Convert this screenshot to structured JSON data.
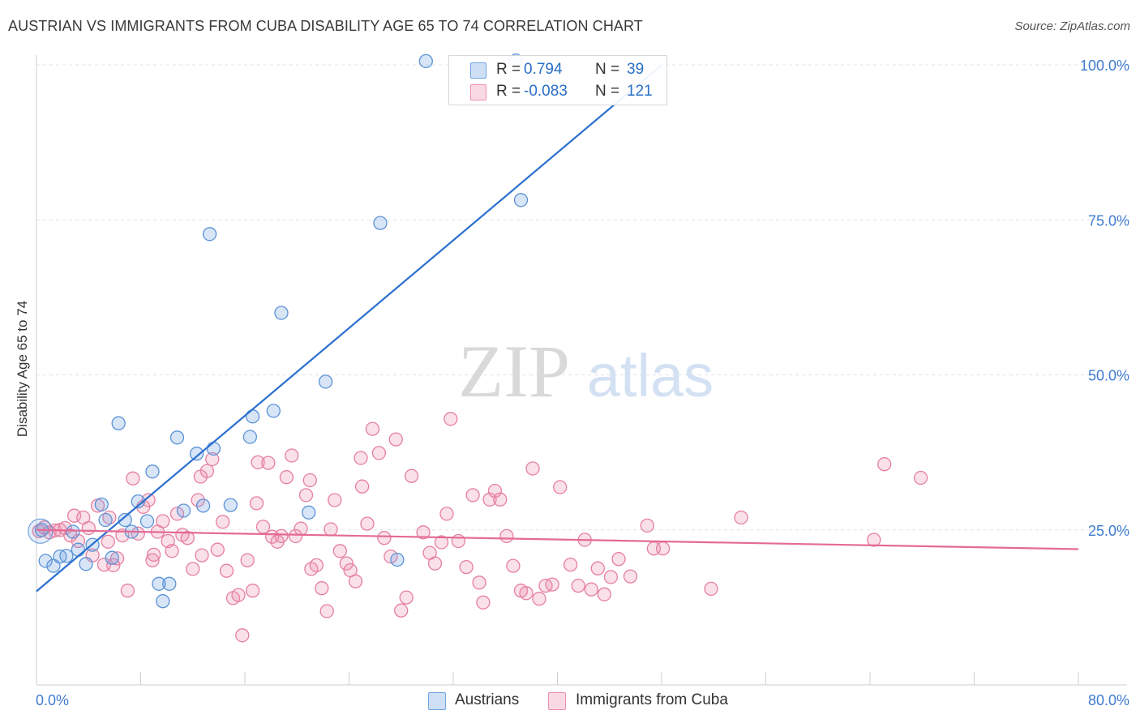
{
  "header": {
    "title": "AUSTRIAN VS IMMIGRANTS FROM CUBA DISABILITY AGE 65 TO 74 CORRELATION CHART",
    "source": "Source: ZipAtlas.com"
  },
  "watermark": {
    "zip": "ZIP",
    "atlas": "atlas"
  },
  "legend_top": {
    "rows": [
      {
        "r_label": "R =",
        "r_value": "0.794",
        "n_label": "N =",
        "n_value": "39",
        "color": "#6fa3e2"
      },
      {
        "r_label": "R =",
        "r_value": "-0.083",
        "n_label": "N =",
        "n_value": "121",
        "color": "#ee8fae"
      }
    ]
  },
  "legend_bottom": {
    "items": [
      {
        "label": "Austrians",
        "color": "#6fa3e2"
      },
      {
        "label": "Immigrants from Cuba",
        "color": "#ee8fae"
      }
    ]
  },
  "chart_data": {
    "type": "scatter",
    "xlabel": "",
    "ylabel": "Disability Age 65 to 74",
    "xlim": [
      0,
      80
    ],
    "ylim": [
      0,
      100
    ],
    "x_tick_labels": [
      {
        "value": 0,
        "label": "0.0%"
      },
      {
        "value": 80,
        "label": "80.0%"
      }
    ],
    "y_tick_labels": [
      {
        "value": 25,
        "label": "25.0%"
      },
      {
        "value": 50,
        "label": "50.0%"
      },
      {
        "value": 75,
        "label": "75.0%"
      },
      {
        "value": 100,
        "label": "100.0%"
      }
    ],
    "grid": true,
    "legend_position": "top-center",
    "series": [
      {
        "name": "Austrians",
        "color": "#6fa3e2",
        "stroke": "#5b93d6",
        "line_color": "#2a6fcf",
        "trend": {
          "x0": 0,
          "y0": 15.1,
          "x1": 48,
          "y1": 100
        },
        "points": [
          [
            0.4,
            25
          ],
          [
            0.7,
            20
          ],
          [
            1.3,
            19.2
          ],
          [
            1.8,
            20.7
          ],
          [
            2.3,
            20.8
          ],
          [
            2.8,
            24.7
          ],
          [
            3.2,
            21.8
          ],
          [
            3.8,
            19.5
          ],
          [
            4.3,
            22.6
          ],
          [
            5.0,
            29.1
          ],
          [
            5.3,
            26.6
          ],
          [
            5.8,
            20.5
          ],
          [
            6.3,
            42.2
          ],
          [
            6.8,
            26.6
          ],
          [
            7.3,
            24.7
          ],
          [
            7.8,
            29.6
          ],
          [
            8.5,
            26.4
          ],
          [
            8.9,
            34.4
          ],
          [
            9.4,
            16.3
          ],
          [
            9.7,
            13.5
          ],
          [
            10.2,
            16.3
          ],
          [
            10.8,
            39.9
          ],
          [
            11.3,
            28.1
          ],
          [
            12.3,
            37.3
          ],
          [
            12.8,
            28.9
          ],
          [
            13.3,
            72.7
          ],
          [
            13.6,
            38.1
          ],
          [
            14.9,
            29.0
          ],
          [
            16.4,
            40.0
          ],
          [
            16.6,
            43.3
          ],
          [
            18.2,
            44.2
          ],
          [
            18.8,
            60.0
          ],
          [
            20.9,
            27.8
          ],
          [
            22.2,
            48.9
          ],
          [
            26.4,
            74.5
          ],
          [
            27.7,
            20.2
          ],
          [
            29.9,
            100.6
          ],
          [
            36.8,
            100.7
          ],
          [
            37.2,
            78.2
          ]
        ]
      },
      {
        "name": "Immigrants from Cuba",
        "color": "#ee8fae",
        "stroke": "#e57fa2",
        "line_color": "#e46a95",
        "trend": {
          "x0": 0,
          "y0": 25.0,
          "x1": 80,
          "y1": 21.9
        },
        "points": [
          [
            0.2,
            24.8
          ],
          [
            0.6,
            25.4
          ],
          [
            1.0,
            24.6
          ],
          [
            1.4,
            24.9
          ],
          [
            1.8,
            25.0
          ],
          [
            2.2,
            25.3
          ],
          [
            2.6,
            24.1
          ],
          [
            2.9,
            27.3
          ],
          [
            3.2,
            23.2
          ],
          [
            3.6,
            27.0
          ],
          [
            4.0,
            25.3
          ],
          [
            4.3,
            20.9
          ],
          [
            4.7,
            28.9
          ],
          [
            5.2,
            19.4
          ],
          [
            5.5,
            23.1
          ],
          [
            5.9,
            19.3
          ],
          [
            6.2,
            20.4
          ],
          [
            6.6,
            24.1
          ],
          [
            7.0,
            15.2
          ],
          [
            7.4,
            33.3
          ],
          [
            7.8,
            24.4
          ],
          [
            8.2,
            28.7
          ],
          [
            8.6,
            29.8
          ],
          [
            8.9,
            20.1
          ],
          [
            9.3,
            24.7
          ],
          [
            9.7,
            26.4
          ],
          [
            10.1,
            23.2
          ],
          [
            10.4,
            21.6
          ],
          [
            10.8,
            27.6
          ],
          [
            11.2,
            24.2
          ],
          [
            11.6,
            23.7
          ],
          [
            12.0,
            18.7
          ],
          [
            12.4,
            29.8
          ],
          [
            12.7,
            20.9
          ],
          [
            13.1,
            34.5
          ],
          [
            13.5,
            36.4
          ],
          [
            13.9,
            21.8
          ],
          [
            14.3,
            26.3
          ],
          [
            14.6,
            18.4
          ],
          [
            15.1,
            14.0
          ],
          [
            15.5,
            14.5
          ],
          [
            15.8,
            8.0
          ],
          [
            16.2,
            20.1
          ],
          [
            16.6,
            15.2
          ],
          [
            17.0,
            35.9
          ],
          [
            17.4,
            25.5
          ],
          [
            17.8,
            35.8
          ],
          [
            18.1,
            23.9
          ],
          [
            18.5,
            23.1
          ],
          [
            18.8,
            24.0
          ],
          [
            19.2,
            33.5
          ],
          [
            19.6,
            37.0
          ],
          [
            19.9,
            24.0
          ],
          [
            20.3,
            25.2
          ],
          [
            20.7,
            30.6
          ],
          [
            21.1,
            18.7
          ],
          [
            21.5,
            19.3
          ],
          [
            21.9,
            15.6
          ],
          [
            22.3,
            11.9
          ],
          [
            22.6,
            25.1
          ],
          [
            22.9,
            29.8
          ],
          [
            23.3,
            21.6
          ],
          [
            23.8,
            19.6
          ],
          [
            24.1,
            18.5
          ],
          [
            24.5,
            16.7
          ],
          [
            24.9,
            36.6
          ],
          [
            25.4,
            26.0
          ],
          [
            25.8,
            41.3
          ],
          [
            26.3,
            37.4
          ],
          [
            26.7,
            23.7
          ],
          [
            27.2,
            20.7
          ],
          [
            27.6,
            39.6
          ],
          [
            28.0,
            12.0
          ],
          [
            28.4,
            14.1
          ],
          [
            28.8,
            33.7
          ],
          [
            29.7,
            24.6
          ],
          [
            30.2,
            21.3
          ],
          [
            30.6,
            19.6
          ],
          [
            31.1,
            23.0
          ],
          [
            31.5,
            27.6
          ],
          [
            31.8,
            42.9
          ],
          [
            32.4,
            23.2
          ],
          [
            33.0,
            19.0
          ],
          [
            33.5,
            30.6
          ],
          [
            34.0,
            16.5
          ],
          [
            34.3,
            13.3
          ],
          [
            34.8,
            29.9
          ],
          [
            35.2,
            31.3
          ],
          [
            35.6,
            29.9
          ],
          [
            36.1,
            24.0
          ],
          [
            36.6,
            19.2
          ],
          [
            37.2,
            15.2
          ],
          [
            37.6,
            14.8
          ],
          [
            38.1,
            34.9
          ],
          [
            38.6,
            13.9
          ],
          [
            39.1,
            16.0
          ],
          [
            39.6,
            16.2
          ],
          [
            40.2,
            31.9
          ],
          [
            41.0,
            19.4
          ],
          [
            41.6,
            16.0
          ],
          [
            42.1,
            23.4
          ],
          [
            42.6,
            15.4
          ],
          [
            43.1,
            18.8
          ],
          [
            43.6,
            14.6
          ],
          [
            44.1,
            17.4
          ],
          [
            44.7,
            20.3
          ],
          [
            45.6,
            17.5
          ],
          [
            46.9,
            25.7
          ],
          [
            47.4,
            22.0
          ],
          [
            48.1,
            22.0
          ],
          [
            51.8,
            15.5
          ],
          [
            54.1,
            27.0
          ],
          [
            64.3,
            23.4
          ],
          [
            65.1,
            35.6
          ],
          [
            67.9,
            33.4
          ],
          [
            5.6,
            27.0
          ],
          [
            9.0,
            21.0
          ],
          [
            12.6,
            33.6
          ],
          [
            16.9,
            29.3
          ],
          [
            21.0,
            33.0
          ],
          [
            25.0,
            32.0
          ]
        ]
      }
    ]
  }
}
